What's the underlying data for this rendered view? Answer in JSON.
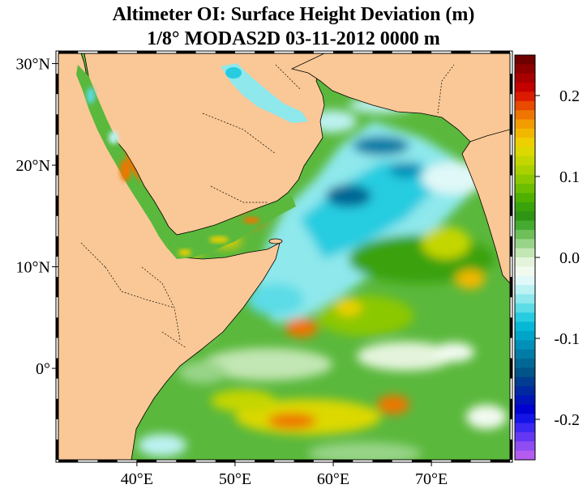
{
  "title": {
    "line1": "Altimeter OI: Surface Height Deviation (m)",
    "line2": "1/8° MODAS2D 03-11-2012 0000 m"
  },
  "axes": {
    "y_ticks": [
      {
        "label": "30°N",
        "lat": 30
      },
      {
        "label": "20°N",
        "lat": 20
      },
      {
        "label": "10°N",
        "lat": 10
      },
      {
        "label": "0°",
        "lat": 0
      }
    ],
    "x_ticks": [
      {
        "label": "40°E",
        "lon": 40
      },
      {
        "label": "50°E",
        "lon": 50
      },
      {
        "label": "60°E",
        "lon": 60
      },
      {
        "label": "70°E",
        "lon": 70
      }
    ],
    "lon_range": [
      32,
      78
    ],
    "lat_range": [
      -9,
      31
    ]
  },
  "colorbar": {
    "range": [
      -0.25,
      0.25
    ],
    "ticks": [
      {
        "label": "0.2",
        "value": 0.2
      },
      {
        "label": "0.1",
        "value": 0.1
      },
      {
        "label": "0.0",
        "value": 0.0
      },
      {
        "label": "-0.1",
        "value": -0.1
      },
      {
        "label": "-0.2",
        "value": -0.2
      }
    ],
    "colors_top_to_bottom": [
      "#6e0000",
      "#8c0000",
      "#a80000",
      "#c40000",
      "#dc1a00",
      "#e84a00",
      "#ee7600",
      "#f29c00",
      "#f2b800",
      "#eed000",
      "#dcd800",
      "#c4d600",
      "#aad000",
      "#8cc800",
      "#6ebe00",
      "#50b000",
      "#3aa20a",
      "#2e9414",
      "#44aa30",
      "#6ebe5a",
      "#98d488",
      "#c2e6b4",
      "#e4f4dc",
      "#f2faf0",
      "#e0f8f8",
      "#bcf2f2",
      "#8ee8ec",
      "#5cdce6",
      "#28cce0",
      "#06b8d6",
      "#00a4c8",
      "#0090b8",
      "#007ca6",
      "#006894",
      "#005488",
      "#003c90",
      "#0028a0",
      "#0014b8",
      "#0000d0",
      "#1414e6",
      "#3c28f2",
      "#6438f2",
      "#8e4cf2",
      "#b45cf0"
    ]
  },
  "colors": {
    "land": "#fac896",
    "ocean_base": "#5ab83c"
  }
}
